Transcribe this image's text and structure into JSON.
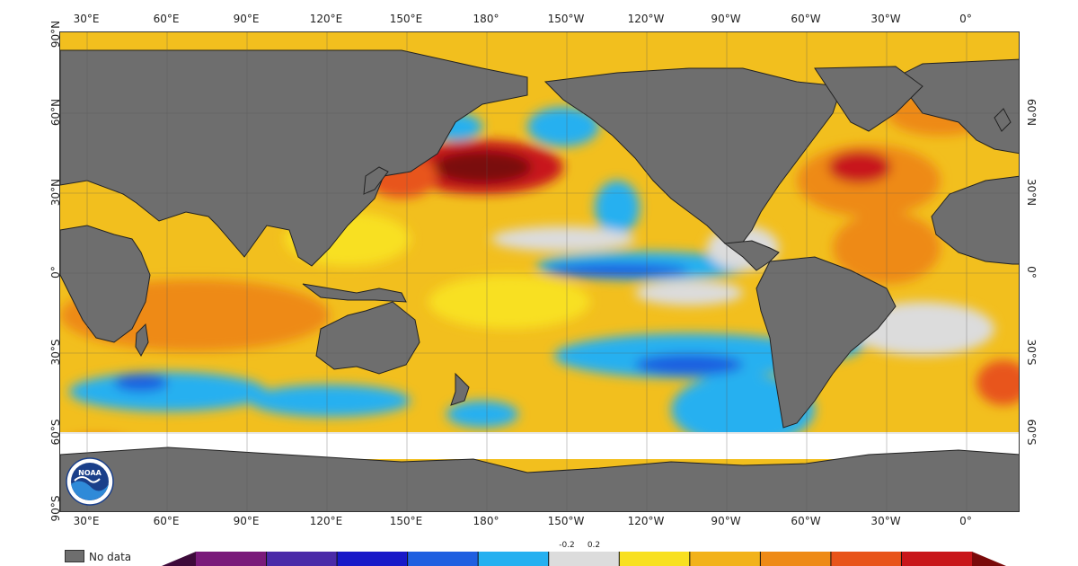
{
  "map": {
    "ocean_base": "#f2bf1e",
    "land_color": "#6e6e6e",
    "ice_color": "#ffffff",
    "top_lon_labels": [
      "30°E",
      "60°E",
      "90°E",
      "120°E",
      "150°E",
      "180°",
      "150°W",
      "120°W",
      "90°W",
      "60°W",
      "30°W",
      "0°"
    ],
    "bottom_lon_labels": [
      "30°E",
      "60°E",
      "90°E",
      "120°E",
      "150°E",
      "180°",
      "150°W",
      "120°W",
      "90°W",
      "60°W",
      "30°W",
      "0°"
    ],
    "left_lat_labels": [
      "90°N",
      "60°N",
      "30°N",
      "0°",
      "30°S",
      "60°S",
      "90°S"
    ],
    "right_lat_labels": [
      "60°N",
      "30°N",
      "0°",
      "30°S",
      "60°S"
    ]
  },
  "legend": {
    "no_data_label": "No data",
    "colorbar_ticks": [
      "-0.2",
      "0.2"
    ],
    "colors": [
      "#3d0a3a",
      "#7a1a7a",
      "#4a2aa8",
      "#1818c8",
      "#1f5fe0",
      "#25b0f0",
      "#dcdcdc",
      "#f8e020",
      "#f2b21a",
      "#ee8a16",
      "#e8541a",
      "#c8161a",
      "#7a0a0a"
    ]
  },
  "logo": {
    "text": "NOAA"
  }
}
